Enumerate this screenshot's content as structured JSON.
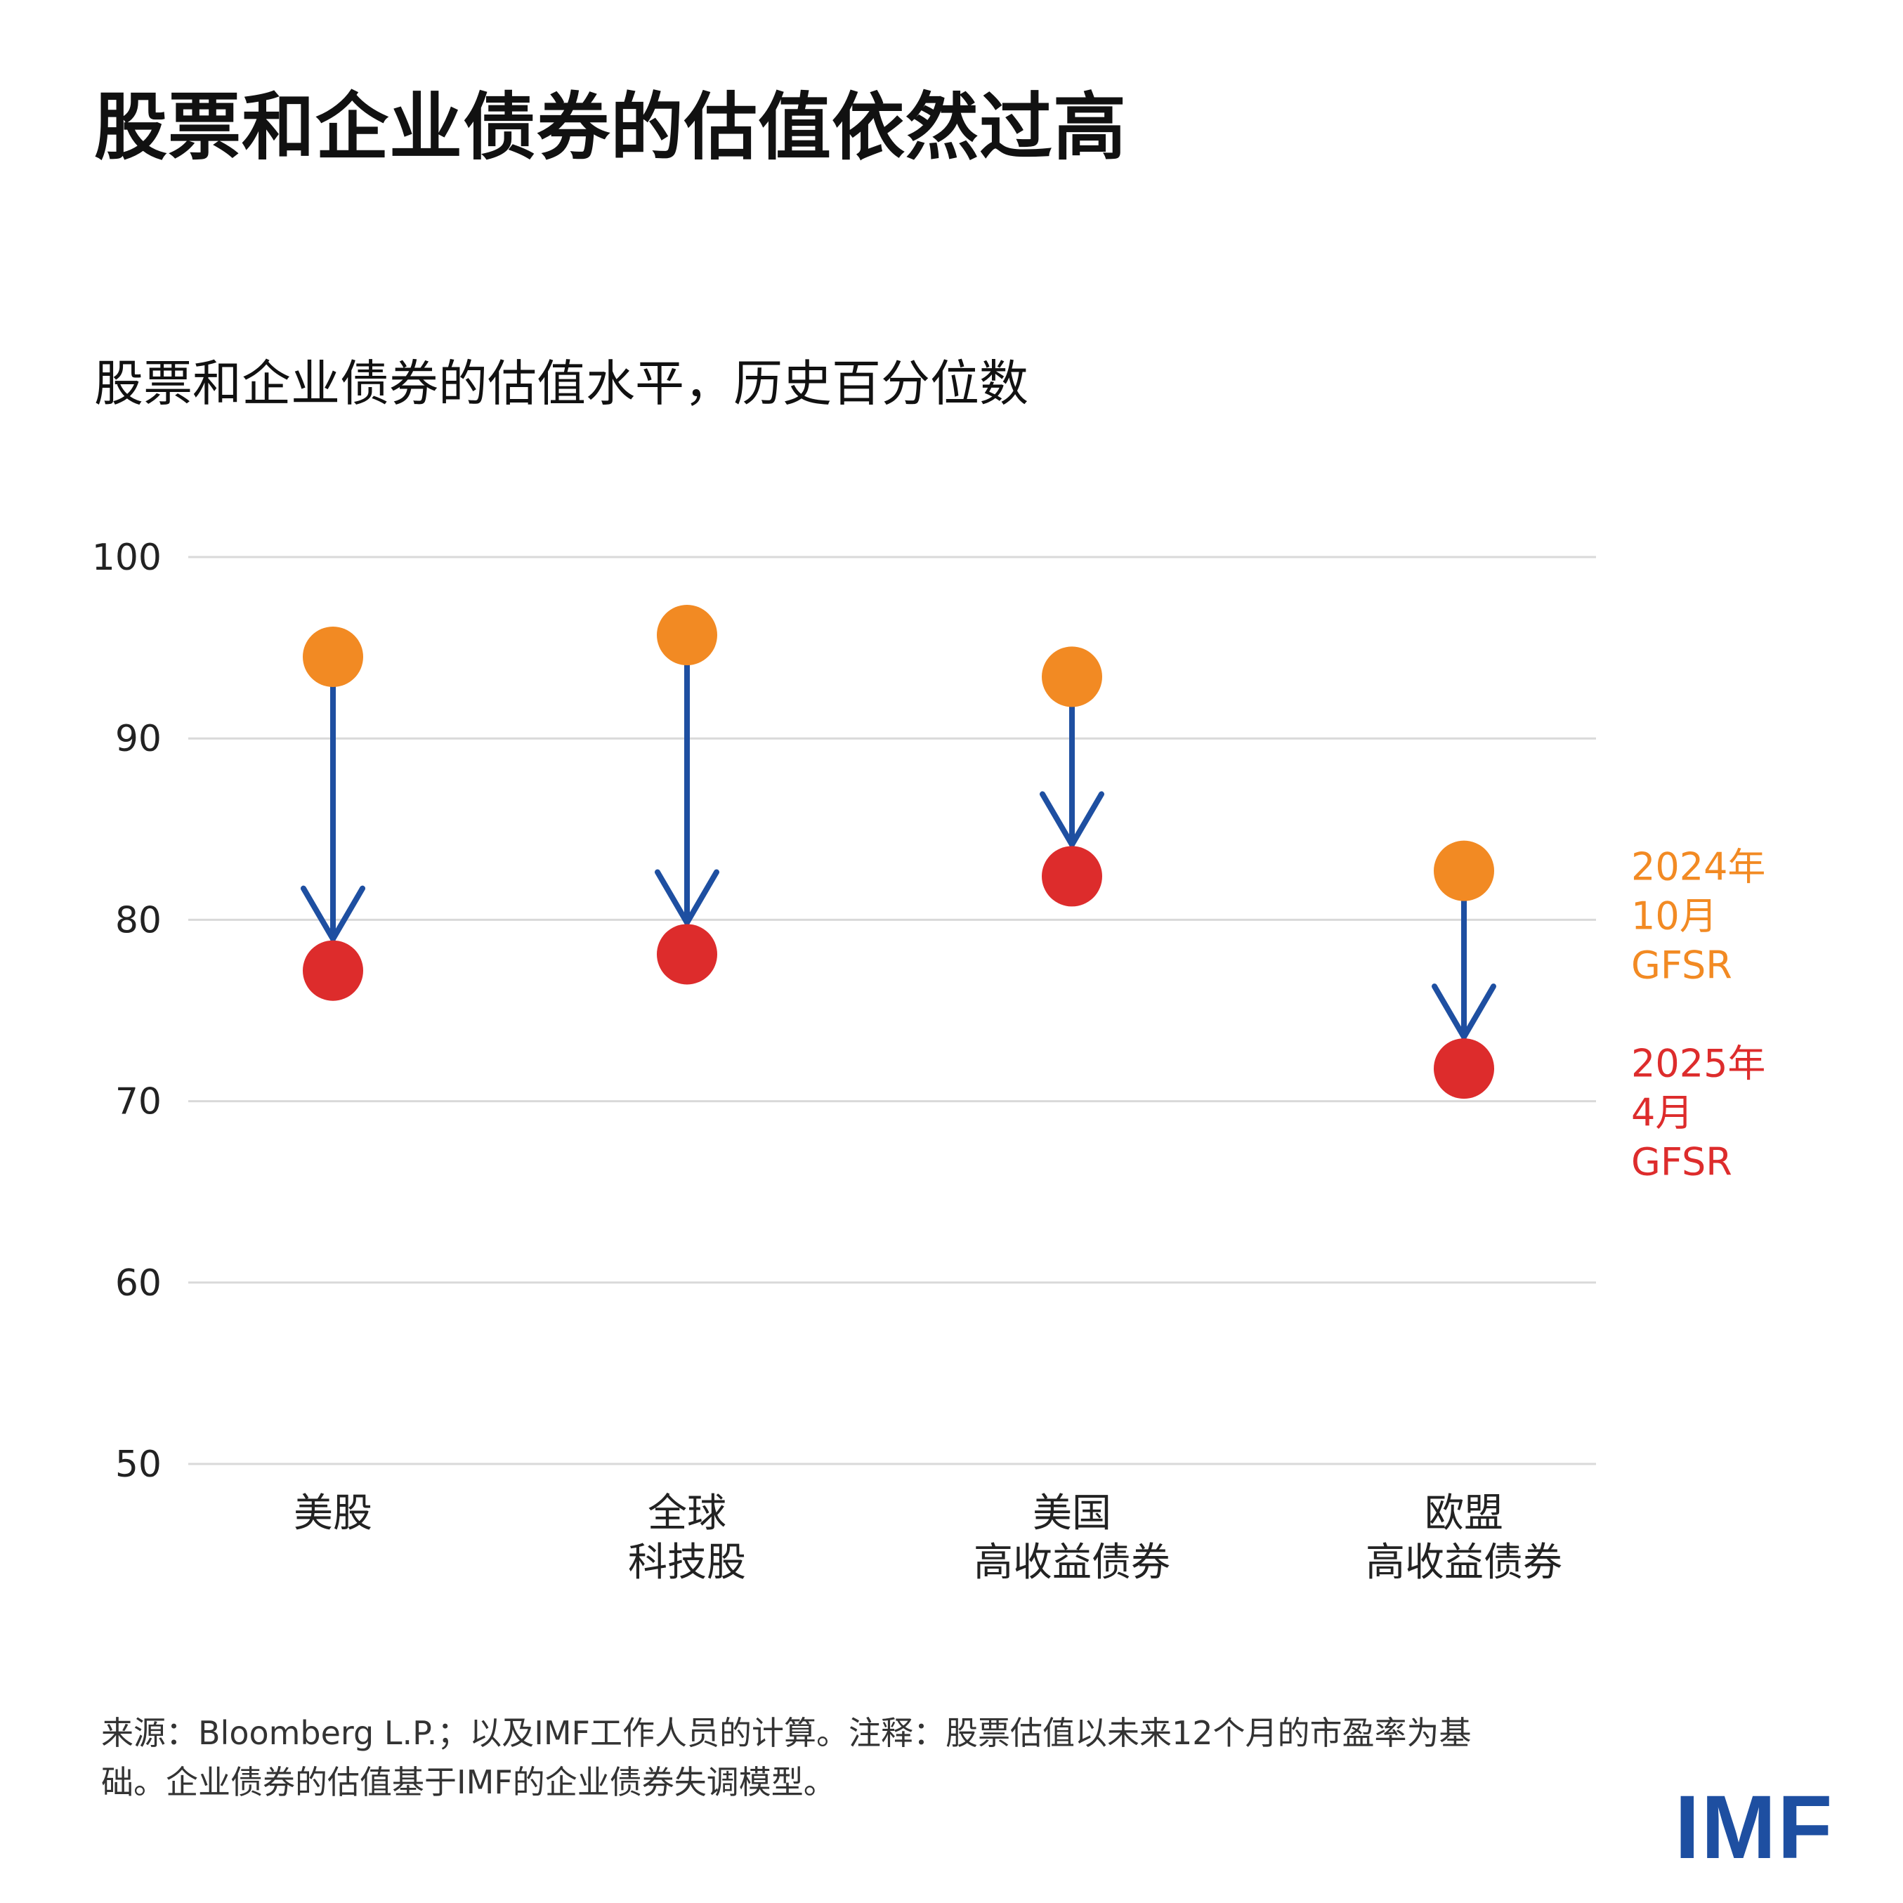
{
  "title": "股票和企业债券的估值依然过高",
  "subtitle": "股票和企业债券的估值水平，历史百分位数",
  "note_lines": [
    "来源：Bloomberg L.P.；以及IMF工作人员的计算。注释：股票估值以未来12个月的市盈率为基",
    "础。企业债券的估值基于IMF的企业债券失调模型。"
  ],
  "logo_text": "IMF",
  "chart_data": {
    "type": "scatter",
    "ylim": [
      50,
      100
    ],
    "yticks": [
      50,
      60,
      70,
      80,
      90,
      100
    ],
    "grid": true,
    "categories": [
      [
        "美股"
      ],
      [
        "全球",
        "科技股"
      ],
      [
        "美国",
        "高收益债券"
      ],
      [
        "欧盟",
        "高收益债券"
      ]
    ],
    "series": [
      {
        "name": [
          "2024年",
          "10月",
          "GFSR"
        ],
        "color": "#f28a23",
        "values": [
          94.5,
          95.7,
          93.4,
          82.7
        ]
      },
      {
        "name": [
          "2025年",
          "4月",
          "GFSR"
        ],
        "color": "#dd2c2c",
        "values": [
          77.2,
          78.1,
          82.4,
          71.8
        ]
      }
    ],
    "arrow_color": "#1e4fa1",
    "legend_position": "right"
  }
}
